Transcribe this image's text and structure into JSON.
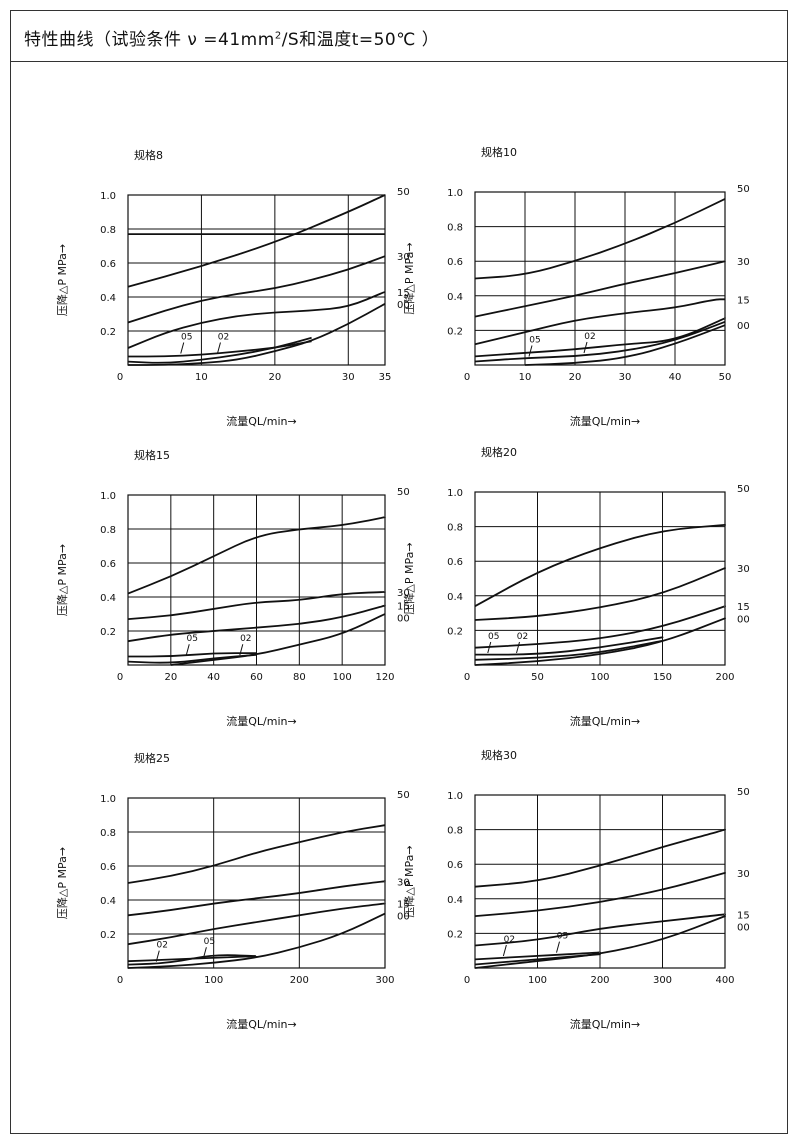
{
  "header": {
    "title_a": "特性曲线（试验条件 ν =41mm",
    "title_sup": "2",
    "title_b": "/S和温度t=50℃ ）"
  },
  "chart_data": [
    {
      "type": "line",
      "title": "规格8",
      "xlabel": "流量QL/min→",
      "ylabel": "压降△P MPa→",
      "xlim": [
        0,
        35
      ],
      "ylim": [
        0,
        1.0
      ],
      "xticks": [
        "0",
        "10",
        "20",
        "30",
        "35"
      ],
      "yticks": [
        "0.2",
        "0.4",
        "0.6",
        "0.8",
        "1.0"
      ],
      "series": [
        {
          "name": "50",
          "x": [
            0,
            10,
            20,
            30,
            35
          ],
          "y": [
            0.46,
            0.58,
            0.72,
            0.9,
            1.0
          ]
        },
        {
          "name": "30",
          "x": [
            0,
            5,
            10,
            15,
            20,
            25,
            30,
            35
          ],
          "y": [
            0.25,
            0.32,
            0.38,
            0.42,
            0.45,
            0.5,
            0.56,
            0.64
          ]
        },
        {
          "name": "15",
          "x": [
            0,
            5,
            10,
            15,
            20,
            25,
            30,
            35
          ],
          "y": [
            0.1,
            0.19,
            0.25,
            0.29,
            0.31,
            0.32,
            0.34,
            0.43
          ]
        },
        {
          "name": "00",
          "x": [
            0,
            5,
            10,
            15,
            20,
            25,
            30,
            35
          ],
          "y": [
            0.0,
            0.0,
            0.01,
            0.03,
            0.08,
            0.14,
            0.24,
            0.36
          ]
        },
        {
          "name": "05",
          "x": [
            0,
            5,
            10,
            15,
            20,
            25
          ],
          "y": [
            0.05,
            0.05,
            0.06,
            0.08,
            0.1,
            0.14
          ]
        },
        {
          "name": "02",
          "x": [
            0,
            5,
            10,
            15,
            20,
            25
          ],
          "y": [
            0.02,
            0.01,
            0.03,
            0.06,
            0.1,
            0.16
          ]
        },
        {
          "name": "",
          "x": [
            0,
            35
          ],
          "y": [
            0.77,
            0.77
          ]
        }
      ],
      "annotations": [
        {
          "text": "05",
          "x": 8,
          "y": 0.15
        },
        {
          "text": "02",
          "x": 13,
          "y": 0.15
        }
      ]
    },
    {
      "type": "line",
      "title": "规格10",
      "xlabel": "流量QL/min→",
      "ylabel": "压降△P MPa→",
      "xlim": [
        0,
        50
      ],
      "ylim": [
        0,
        1.0
      ],
      "xticks": [
        "0",
        "10",
        "20",
        "30",
        "40",
        "50"
      ],
      "yticks": [
        "0.2",
        "0.4",
        "0.6",
        "0.8",
        "1.0"
      ],
      "series": [
        {
          "name": "50",
          "x": [
            0,
            10,
            20,
            30,
            40,
            50
          ],
          "y": [
            0.5,
            0.52,
            0.6,
            0.7,
            0.82,
            0.96
          ]
        },
        {
          "name": "30",
          "x": [
            0,
            10,
            20,
            30,
            40,
            50
          ],
          "y": [
            0.28,
            0.34,
            0.4,
            0.47,
            0.53,
            0.6
          ]
        },
        {
          "name": "15",
          "x": [
            0,
            10,
            20,
            30,
            40,
            48,
            50
          ],
          "y": [
            0.12,
            0.19,
            0.26,
            0.3,
            0.33,
            0.38,
            0.38
          ]
        },
        {
          "name": "05",
          "x": [
            0,
            10,
            20,
            30,
            40,
            50
          ],
          "y": [
            0.05,
            0.07,
            0.09,
            0.12,
            0.14,
            0.27
          ]
        },
        {
          "name": "02",
          "x": [
            0,
            10,
            20,
            30,
            40,
            50
          ],
          "y": [
            0.02,
            0.04,
            0.05,
            0.08,
            0.14,
            0.25
          ]
        },
        {
          "name": "00",
          "x": [
            10,
            20,
            30,
            40,
            50
          ],
          "y": [
            0.0,
            0.01,
            0.04,
            0.12,
            0.23
          ]
        }
      ],
      "annotations": [
        {
          "text": "05",
          "x": 12,
          "y": 0.13
        },
        {
          "text": "02",
          "x": 23,
          "y": 0.15
        }
      ]
    },
    {
      "type": "line",
      "title": "规格15",
      "xlabel": "流量QL/min→",
      "ylabel": "压降△P MPa→",
      "xlim": [
        0,
        120
      ],
      "ylim": [
        0,
        1.0
      ],
      "xticks": [
        "0",
        "20",
        "40",
        "60",
        "80",
        "100",
        "120"
      ],
      "yticks": [
        "0.2",
        "0.4",
        "0.6",
        "0.8",
        "1.0"
      ],
      "series": [
        {
          "name": "50",
          "x": [
            0,
            20,
            40,
            60,
            80,
            100,
            120
          ],
          "y": [
            0.42,
            0.52,
            0.64,
            0.76,
            0.8,
            0.82,
            0.87
          ]
        },
        {
          "name": "30",
          "x": [
            0,
            20,
            40,
            60,
            80,
            100,
            120
          ],
          "y": [
            0.27,
            0.29,
            0.33,
            0.37,
            0.38,
            0.42,
            0.43
          ]
        },
        {
          "name": "15",
          "x": [
            0,
            20,
            40,
            60,
            80,
            100,
            120
          ],
          "y": [
            0.14,
            0.18,
            0.2,
            0.22,
            0.24,
            0.28,
            0.35
          ]
        },
        {
          "name": "05",
          "x": [
            0,
            20,
            40,
            60
          ],
          "y": [
            0.05,
            0.05,
            0.07,
            0.07
          ]
        },
        {
          "name": "02",
          "x": [
            0,
            20,
            40,
            60
          ],
          "y": [
            0.02,
            0.01,
            0.04,
            0.06
          ]
        },
        {
          "name": "00",
          "x": [
            20,
            40,
            60,
            80,
            100,
            120
          ],
          "y": [
            0.0,
            0.03,
            0.06,
            0.12,
            0.18,
            0.3
          ]
        }
      ],
      "annotations": [
        {
          "text": "05",
          "x": 30,
          "y": 0.14
        },
        {
          "text": "02",
          "x": 55,
          "y": 0.14
        }
      ]
    },
    {
      "type": "line",
      "title": "规格20",
      "xlabel": "流量QL/min→",
      "ylabel": "压降△P MPa→",
      "xlim": [
        0,
        200
      ],
      "ylim": [
        0,
        1.0
      ],
      "xticks": [
        "0",
        "50",
        "100",
        "150",
        "200"
      ],
      "yticks": [
        "0.2",
        "0.4",
        "0.6",
        "0.8",
        "1.0"
      ],
      "series": [
        {
          "name": "50",
          "x": [
            0,
            50,
            100,
            150,
            200
          ],
          "y": [
            0.34,
            0.54,
            0.68,
            0.78,
            0.81
          ]
        },
        {
          "name": "30",
          "x": [
            0,
            50,
            100,
            150,
            200
          ],
          "y": [
            0.26,
            0.28,
            0.33,
            0.41,
            0.56
          ]
        },
        {
          "name": "15",
          "x": [
            0,
            50,
            100,
            150,
            200
          ],
          "y": [
            0.1,
            0.12,
            0.15,
            0.22,
            0.34
          ]
        },
        {
          "name": "05",
          "x": [
            0,
            50,
            100,
            150
          ],
          "y": [
            0.06,
            0.06,
            0.1,
            0.16
          ]
        },
        {
          "name": "02",
          "x": [
            0,
            50,
            100,
            150
          ],
          "y": [
            0.03,
            0.04,
            0.07,
            0.14
          ]
        },
        {
          "name": "00",
          "x": [
            0,
            50,
            100,
            150,
            200
          ],
          "y": [
            0.0,
            0.02,
            0.06,
            0.13,
            0.27
          ]
        }
      ],
      "annotations": [
        {
          "text": "05",
          "x": 15,
          "y": 0.15
        },
        {
          "text": "02",
          "x": 38,
          "y": 0.15
        }
      ]
    },
    {
      "type": "line",
      "title": "规格25",
      "xlabel": "流量QL/min→",
      "ylabel": "压降△P MPa→",
      "xlim": [
        0,
        300
      ],
      "ylim": [
        0,
        1.0
      ],
      "xticks": [
        "0",
        "100",
        "200",
        "300"
      ],
      "yticks": [
        "0.2",
        "0.4",
        "0.6",
        "0.8",
        "1.0"
      ],
      "series": [
        {
          "name": "50",
          "x": [
            0,
            50,
            100,
            150,
            200,
            250,
            300
          ],
          "y": [
            0.5,
            0.54,
            0.6,
            0.68,
            0.74,
            0.8,
            0.84
          ]
        },
        {
          "name": "30",
          "x": [
            0,
            50,
            100,
            150,
            200,
            250,
            300
          ],
          "y": [
            0.31,
            0.34,
            0.38,
            0.41,
            0.44,
            0.48,
            0.51
          ]
        },
        {
          "name": "15",
          "x": [
            0,
            50,
            100,
            150,
            200,
            250,
            300
          ],
          "y": [
            0.14,
            0.18,
            0.23,
            0.27,
            0.31,
            0.35,
            0.38
          ]
        },
        {
          "name": "05",
          "x": [
            0,
            50,
            100,
            150
          ],
          "y": [
            0.02,
            0.03,
            0.08,
            0.07
          ]
        },
        {
          "name": "02",
          "x": [
            0,
            50,
            100,
            150
          ],
          "y": [
            0.04,
            0.05,
            0.06,
            0.07
          ]
        },
        {
          "name": "00",
          "x": [
            0,
            50,
            100,
            150,
            200,
            250,
            300
          ],
          "y": [
            0.0,
            0.01,
            0.03,
            0.06,
            0.12,
            0.2,
            0.32
          ]
        }
      ],
      "annotations": [
        {
          "text": "02",
          "x": 40,
          "y": 0.12
        },
        {
          "text": "05",
          "x": 95,
          "y": 0.14
        }
      ]
    },
    {
      "type": "line",
      "title": "规格30",
      "xlabel": "流量QL/min→",
      "ylabel": "压降△P MPa→",
      "xlim": [
        0,
        400
      ],
      "ylim": [
        0,
        1.0
      ],
      "xticks": [
        "0",
        "100",
        "200",
        "300",
        "400"
      ],
      "yticks": [
        "0.2",
        "0.4",
        "0.6",
        "0.8",
        "1.0"
      ],
      "series": [
        {
          "name": "50",
          "x": [
            0,
            100,
            200,
            300,
            400
          ],
          "y": [
            0.47,
            0.5,
            0.59,
            0.7,
            0.8
          ]
        },
        {
          "name": "30",
          "x": [
            0,
            100,
            200,
            300,
            400
          ],
          "y": [
            0.3,
            0.33,
            0.38,
            0.45,
            0.55
          ]
        },
        {
          "name": "15",
          "x": [
            0,
            100,
            200,
            300,
            400
          ],
          "y": [
            0.13,
            0.16,
            0.23,
            0.27,
            0.31
          ]
        },
        {
          "name": "02",
          "x": [
            0,
            100,
            200
          ],
          "y": [
            0.05,
            0.07,
            0.09
          ]
        },
        {
          "name": "05",
          "x": [
            0,
            100,
            200
          ],
          "y": [
            0.02,
            0.05,
            0.08
          ]
        },
        {
          "name": "00",
          "x": [
            0,
            100,
            200,
            300,
            400
          ],
          "y": [
            0.0,
            0.04,
            0.08,
            0.16,
            0.3
          ]
        }
      ],
      "annotations": [
        {
          "text": "02",
          "x": 55,
          "y": 0.15
        },
        {
          "text": "05",
          "x": 140,
          "y": 0.17
        }
      ]
    }
  ]
}
